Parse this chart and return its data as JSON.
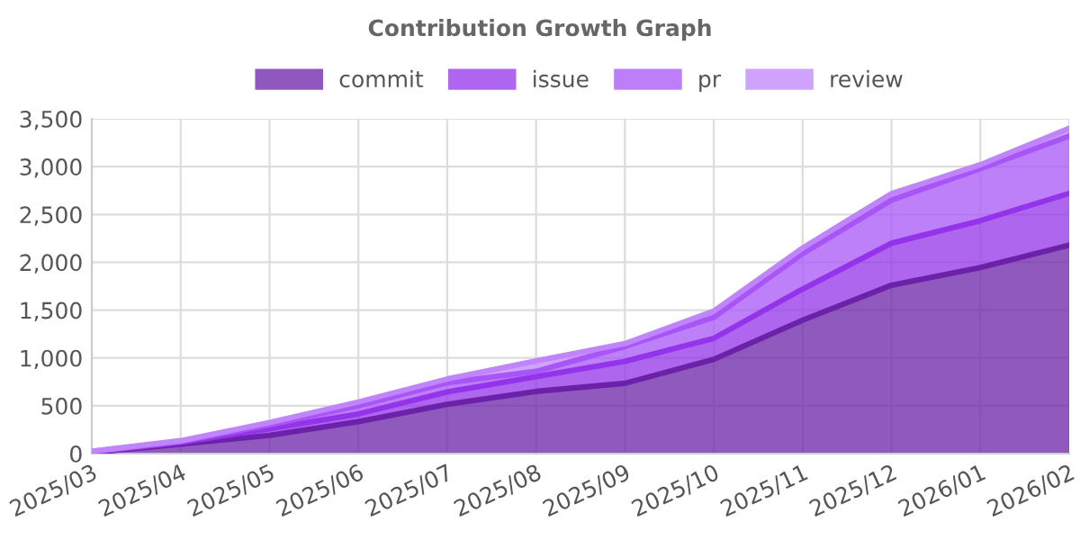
{
  "chart_data": {
    "type": "area",
    "title": "Contribution Growth Graph",
    "stacked": true,
    "legend": "top",
    "grid": true,
    "categories": [
      "2025/03",
      "2025/04",
      "2025/05",
      "2025/06",
      "2025/07",
      "2025/08",
      "2025/09",
      "2025/10",
      "2025/11",
      "2025/12",
      "2026/01",
      "2026/02"
    ],
    "ylim": [
      0,
      3500
    ],
    "yticks": [
      0,
      500,
      {
        "value": 1000,
        "label": "1,000"
      },
      {
        "value": 1500,
        "label": "1,500"
      },
      {
        "value": 2000,
        "label": "2,000"
      },
      {
        "value": 2500,
        "label": "2,500"
      },
      {
        "value": 3000,
        "label": "3,000"
      },
      {
        "value": 3500,
        "label": "3,500"
      }
    ],
    "series": [
      {
        "name": "commit",
        "color": "#6b21a8",
        "values": [
          10,
          100,
          190,
          335,
          515,
          650,
          735,
          985,
          1395,
          1760,
          1945,
          2180
        ]
      },
      {
        "name": "issue",
        "color": "#9333ea",
        "values": [
          5,
          15,
          70,
          80,
          130,
          155,
          230,
          220,
          325,
          440,
          490,
          540
        ]
      },
      {
        "name": "pr",
        "color": "#a855f7",
        "values": [
          5,
          13,
          40,
          85,
          95,
          55,
          155,
          220,
          370,
          450,
          545,
          600
        ]
      },
      {
        "name": "review",
        "color": "#c084fc",
        "values": [
          5,
          7,
          25,
          40,
          40,
          110,
          30,
          65,
          60,
          68,
          40,
          80
        ]
      }
    ]
  }
}
